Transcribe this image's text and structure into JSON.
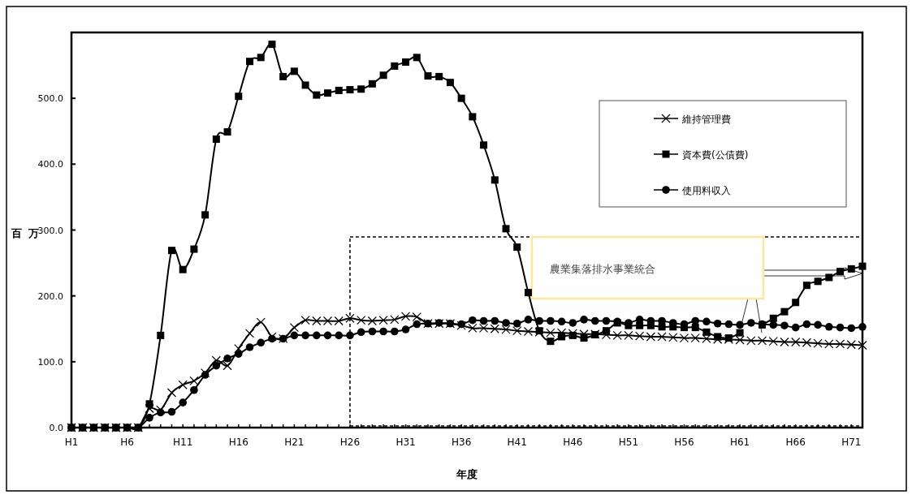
{
  "chart_data": {
    "type": "line",
    "categories": [
      "H1",
      null,
      null,
      null,
      null,
      "H6",
      null,
      null,
      null,
      null,
      "H11",
      null,
      null,
      null,
      null,
      "H16",
      null,
      null,
      null,
      null,
      "H21",
      null,
      null,
      null,
      null,
      "H26",
      null,
      null,
      null,
      null,
      "H31",
      null,
      null,
      null,
      null,
      "H36",
      null,
      null,
      null,
      null,
      "H41",
      null,
      null,
      null,
      null,
      "H46",
      null,
      null,
      null,
      null,
      "H51",
      null,
      null,
      null,
      null,
      "H56",
      null,
      null,
      null,
      null,
      "H61",
      null,
      null,
      null,
      null,
      "H66",
      null,
      null,
      null,
      null,
      "H71",
      null
    ],
    "xlabel": "年度",
    "ylabel": "百万",
    "ylim": [
      0,
      600
    ],
    "yticks": [
      {
        "value": 0,
        "label": "0.0"
      },
      {
        "value": 100,
        "label": "100.0"
      },
      {
        "value": 200,
        "label": "200.0"
      },
      {
        "value": 300,
        "label": "300.0"
      },
      {
        "value": 400,
        "label": "400.0"
      },
      {
        "value": 500,
        "label": "500.0"
      }
    ],
    "legend": "top right",
    "annotations": [
      "農業集落排水事業統合"
    ],
    "series": [
      {
        "name": "維持管理費",
        "color": "#000000",
        "marker": "cross",
        "values": [
          0,
          0,
          0,
          0,
          0,
          0,
          0,
          29,
          27,
          53,
          65,
          71,
          83,
          102,
          94,
          120,
          143,
          160,
          138,
          135,
          152,
          163,
          162,
          162,
          162,
          166,
          163,
          162,
          163,
          164,
          169,
          168,
          158,
          158,
          158,
          155,
          151,
          151,
          150,
          149,
          147,
          146,
          145,
          144,
          144,
          143,
          142,
          142,
          141,
          140,
          140,
          139,
          138,
          138,
          137,
          136,
          136,
          135,
          134,
          134,
          133,
          132,
          132,
          131,
          130,
          130,
          129,
          128,
          127,
          127,
          126,
          125
        ]
      },
      {
        "name": "資本費(公債費)",
        "color": "#000000",
        "marker": "square",
        "values": [
          0,
          0,
          0,
          0,
          0,
          0,
          0,
          36,
          140,
          269,
          240,
          271,
          323,
          438,
          449,
          503,
          556,
          562,
          582,
          533,
          541,
          520,
          505,
          508,
          512,
          513,
          514,
          522,
          535,
          549,
          555,
          562,
          534,
          533,
          524,
          500,
          472,
          429,
          376,
          302,
          274,
          205,
          147,
          131,
          138,
          140,
          136,
          141,
          147,
          159,
          155,
          155,
          155,
          153,
          153,
          152,
          152,
          145,
          138,
          136,
          144,
          null,
          156,
          166,
          176,
          190,
          216,
          222,
          228,
          237,
          241,
          245
        ]
      },
      {
        "name": "使用料収入",
        "color": "#000000",
        "marker": "circle",
        "values": [
          0,
          0,
          0,
          0,
          0,
          0,
          0,
          15,
          23,
          24,
          38,
          57,
          80,
          94,
          105,
          112,
          122,
          129,
          135,
          135,
          140,
          140,
          140,
          140,
          140,
          140,
          145,
          146,
          146,
          146,
          149,
          157,
          158,
          159,
          158,
          157,
          163,
          162,
          162,
          159,
          158,
          164,
          162,
          162,
          161,
          159,
          164,
          162,
          162,
          161,
          159,
          164,
          162,
          162,
          159,
          157,
          162,
          161,
          158,
          157,
          156,
          159,
          157,
          156,
          155,
          152,
          157,
          156,
          153,
          152,
          151,
          153
        ]
      }
    ]
  }
}
